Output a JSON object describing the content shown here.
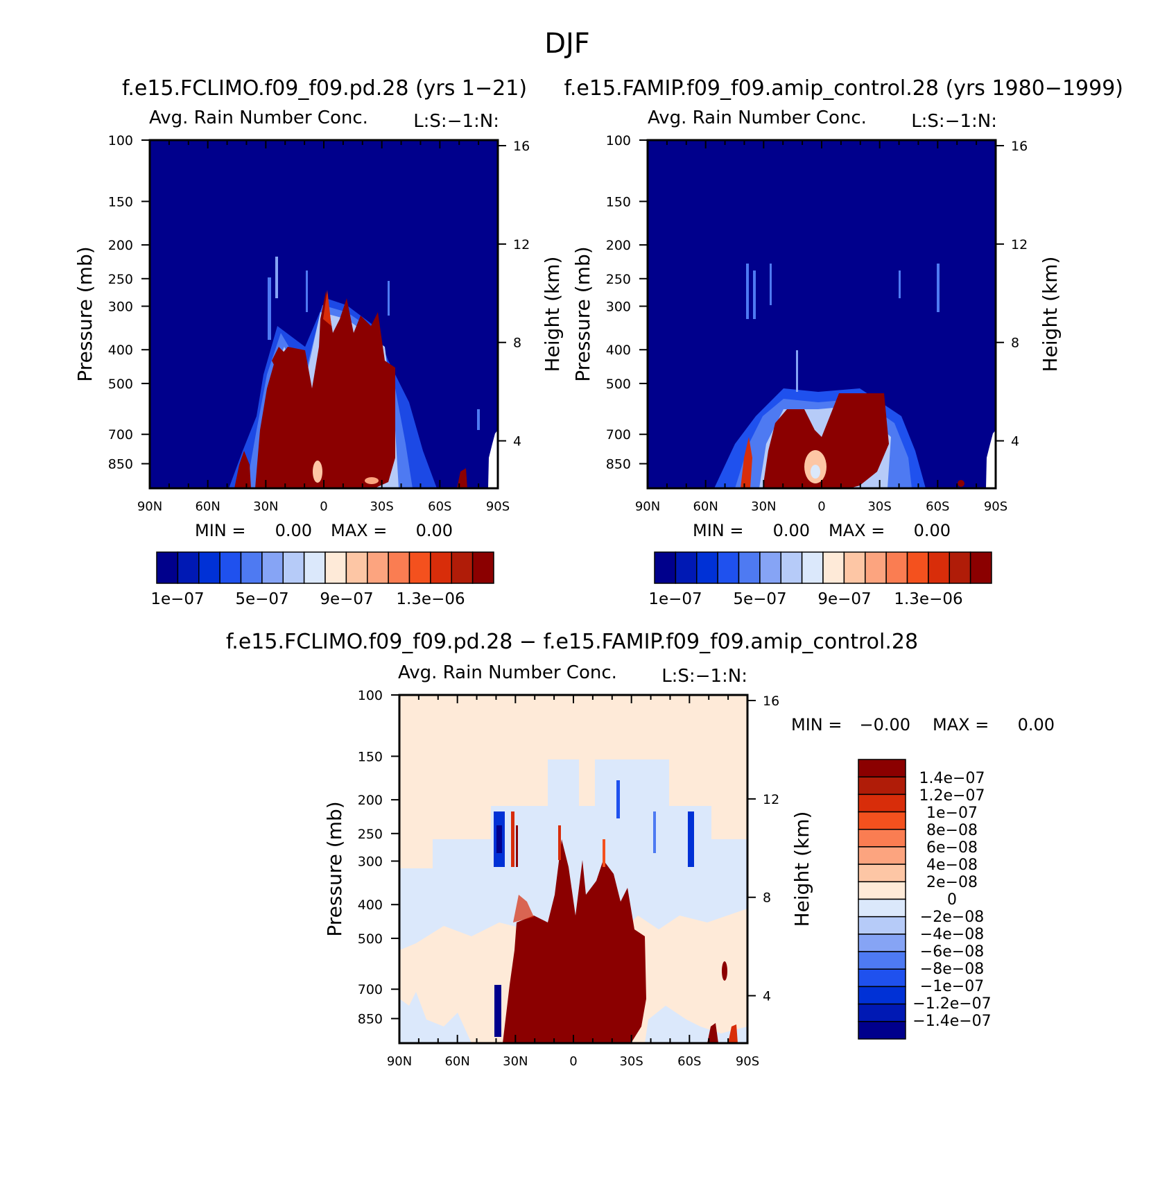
{
  "page_title": "DJF",
  "colors": {
    "seq": [
      "#00008c",
      "#0019b4",
      "#0031d6",
      "#1f51ee",
      "#4e7af2",
      "#86a4f5",
      "#b6cbf8",
      "#dbe8fb",
      "#feead8",
      "#fdc6a5",
      "#fca47f",
      "#fa7d52",
      "#f4511e",
      "#d82d0a",
      "#b01c08",
      "#8b0000"
    ],
    "diff": [
      "#00008c",
      "#0019b4",
      "#0031d6",
      "#1f51ee",
      "#4e7af2",
      "#86a4f5",
      "#b6cbf8",
      "#dbe8fb",
      "#feead8",
      "#fdc6a5",
      "#fca47f",
      "#fa7d52",
      "#f4511e",
      "#d82d0a",
      "#b01c08",
      "#8b0000"
    ]
  },
  "chart_data": [
    {
      "type": "heatmap",
      "case_title": "f.e15.FCLIMO.f09_f09.pd.28 (yrs 1−21)",
      "title": "Avg. Rain Number Conc.",
      "subtitle_right": "L:S:−1:N:",
      "ylabel": "Pressure (mb)",
      "ylabel_right": "Height (km)",
      "xlabel": "",
      "x_ticks": [
        "90N",
        "60N",
        "30N",
        "0",
        "30S",
        "60S",
        "90S"
      ],
      "x_range": [
        -90,
        90
      ],
      "y_ticks": [
        100,
        150,
        200,
        250,
        300,
        400,
        500,
        700,
        850
      ],
      "y_range": [
        100,
        1000
      ],
      "y_right_ticks": [
        16,
        12,
        8,
        4
      ],
      "min_label": "MIN =",
      "min_value": "0.00",
      "max_label": "MAX =",
      "max_value": "0.00",
      "colorbar_labels": [
        "1e−07",
        "5e−07",
        "9e−07",
        "1.3e−06"
      ]
    },
    {
      "type": "heatmap",
      "case_title": "f.e15.FAMIP.f09_f09.amip_control.28 (yrs 1980−1999)",
      "title": "Avg. Rain Number Conc.",
      "subtitle_right": "L:S:−1:N:",
      "ylabel": "Pressure (mb)",
      "ylabel_right": "Height (km)",
      "xlabel": "",
      "x_ticks": [
        "90N",
        "60N",
        "30N",
        "0",
        "30S",
        "60S",
        "90S"
      ],
      "x_range": [
        -90,
        90
      ],
      "y_ticks": [
        100,
        150,
        200,
        250,
        300,
        400,
        500,
        700,
        850
      ],
      "y_range": [
        100,
        1000
      ],
      "y_right_ticks": [
        16,
        12,
        8,
        4
      ],
      "min_label": "MIN =",
      "min_value": "0.00",
      "max_label": "MAX =",
      "max_value": "0.00",
      "colorbar_labels": [
        "1e−07",
        "5e−07",
        "9e−07",
        "1.3e−06"
      ]
    },
    {
      "type": "heatmap",
      "case_title": "f.e15.FCLIMO.f09_f09.pd.28 − f.e15.FAMIP.f09_f09.amip_control.28",
      "title": "Avg. Rain Number Conc.",
      "subtitle_right": "L:S:−1:N:",
      "ylabel": "Pressure (mb)",
      "ylabel_right": "Height (km)",
      "xlabel": "",
      "x_ticks": [
        "90N",
        "60N",
        "30N",
        "0",
        "30S",
        "60S",
        "90S"
      ],
      "x_range": [
        -90,
        90
      ],
      "y_ticks": [
        100,
        150,
        200,
        250,
        300,
        400,
        500,
        700,
        850
      ],
      "y_range": [
        100,
        1000
      ],
      "y_right_ticks": [
        16,
        12,
        8,
        4
      ],
      "min_label": "MIN =",
      "min_value": "−0.00",
      "max_label": "MAX =",
      "max_value": "0.00",
      "colorbar_labels": [
        "1.4e−07",
        "1.2e−07",
        "1e−07",
        "8e−08",
        "6e−08",
        "4e−08",
        "2e−08",
        "0",
        "−2e−08",
        "−4e−08",
        "−6e−08",
        "−8e−08",
        "−1e−07",
        "−1.2e−07",
        "−1.4e−07"
      ]
    }
  ]
}
